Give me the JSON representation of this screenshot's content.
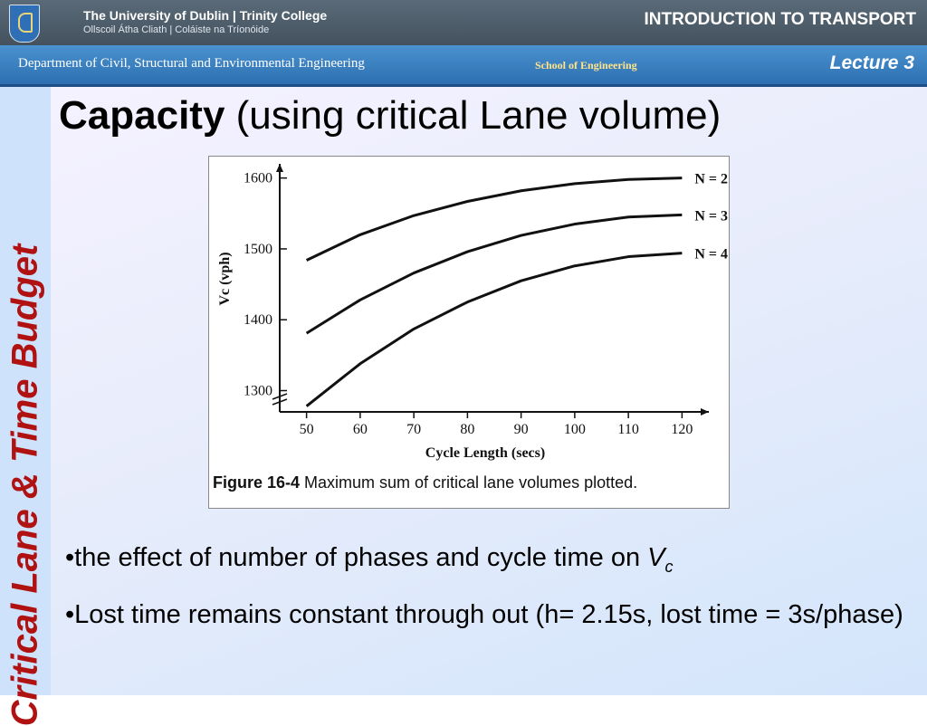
{
  "header": {
    "university": "The University of Dublin | Trinity College",
    "university_irish": "Ollscoil Átha Cliath | Coláiste na Tríonóide",
    "course": "INTRODUCTION TO TRANSPORT",
    "department": "Department of Civil, Structural and Environmental Engineering",
    "school": "School of Engineering",
    "lecture": "Lecture 3"
  },
  "sidebar": {
    "vertical_title": "Critical Lane & Time Budget"
  },
  "slide": {
    "title_bold": "Capacity",
    "title_rest": "(using critical Lane volume)",
    "bullet1_text": "•the effect of number of phases and cycle time on ",
    "bullet1_var": "V",
    "bullet1_sub": "c",
    "bullet2_text": "•Lost time remains constant through out (h= 2.15s, lost time = 3s/phase)"
  },
  "chart_data": {
    "type": "line",
    "ylabel": "Vc (vph)",
    "xlabel": "Cycle Length (secs)",
    "caption_bold": "Figure 16-4",
    "caption_text": "Maximum sum of critical lane volumes plotted.",
    "xlim": [
      45,
      125
    ],
    "ylim": [
      1270,
      1620
    ],
    "x_ticks": [
      50,
      60,
      70,
      80,
      90,
      100,
      110,
      120
    ],
    "y_ticks": [
      1300,
      1400,
      1500,
      1600
    ],
    "x": [
      50,
      60,
      70,
      80,
      90,
      100,
      110,
      120
    ],
    "series": [
      {
        "name": "N = 2",
        "values": [
          1484,
          1520,
          1547,
          1567,
          1582,
          1592,
          1598,
          1600
        ]
      },
      {
        "name": "N = 3",
        "values": [
          1381,
          1428,
          1466,
          1496,
          1519,
          1535,
          1545,
          1548
        ]
      },
      {
        "name": "N = 4",
        "values": [
          1278,
          1338,
          1387,
          1425,
          1455,
          1476,
          1489,
          1494
        ]
      }
    ]
  }
}
